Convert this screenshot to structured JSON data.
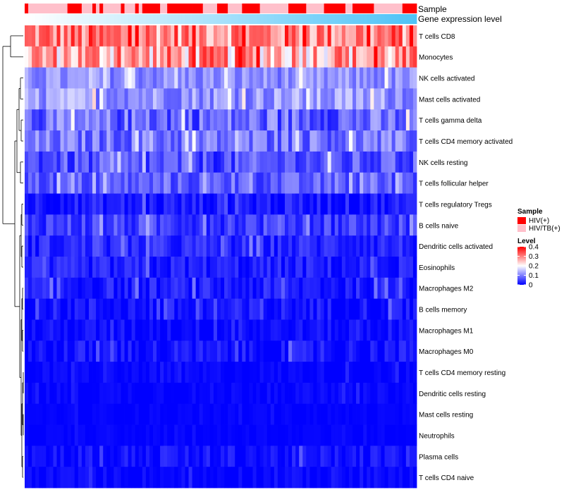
{
  "chart_data": {
    "type": "heatmap",
    "title": "",
    "annotations": {
      "sample_label": "Sample",
      "expression_label": "Gene expression level"
    },
    "legend": {
      "placement": "right",
      "sample": {
        "title": "Sample",
        "entries": [
          {
            "label": "HIV(+)",
            "color": "#ff0000"
          },
          {
            "label": "HIV/TB(+)",
            "color": "#ffc0cb"
          }
        ]
      },
      "level": {
        "title": "Level",
        "ticks": [
          "0.4",
          "0.3",
          "0.2",
          "0.1",
          "0"
        ],
        "tick_values": [
          0.4,
          0.3,
          0.2,
          0.1,
          0.0
        ],
        "range": [
          0,
          0.4
        ]
      }
    },
    "colors": {
      "low": "#0000ff",
      "mid": "#ffffff",
      "high": "#ff0000",
      "hiv": "#ff0000",
      "hivtb": "#ffc0cb",
      "expr_low": "#ffffff",
      "expr_high": "#4fc3f7",
      "dendrogram": "#000000"
    },
    "sample_groups": [
      "HIV(+)",
      "HIV/TB(+)",
      "HIV/TB(+)",
      "HIV/TB(+)",
      "HIV/TB(+)",
      "HIV/TB(+)",
      "HIV/TB(+)",
      "HIV/TB(+)",
      "HIV/TB(+)",
      "HIV/TB(+)",
      "HIV/TB(+)",
      "HIV/TB(+)",
      "HIV(+)",
      "HIV(+)",
      "HIV(+)",
      "HIV(+)",
      "HIV/TB(+)",
      "HIV/TB(+)",
      "HIV/TB(+)",
      "HIV(+)",
      "HIV/TB(+)",
      "HIV(+)",
      "HIV/TB(+)",
      "HIV/TB(+)",
      "HIV/TB(+)",
      "HIV/TB(+)",
      "HIV/TB(+)",
      "HIV(+)",
      "HIV/TB(+)",
      "HIV/TB(+)",
      "HIV/TB(+)",
      "HIV(+)",
      "HIV/TB(+)",
      "HIV(+)",
      "HIV(+)",
      "HIV(+)",
      "HIV(+)",
      "HIV(+)",
      "HIV/TB(+)",
      "HIV/TB(+)",
      "HIV(+)",
      "HIV(+)",
      "HIV(+)",
      "HIV(+)",
      "HIV(+)",
      "HIV(+)",
      "HIV(+)",
      "HIV(+)",
      "HIV(+)",
      "HIV(+)",
      "HIV/TB(+)",
      "HIV/TB(+)",
      "HIV/TB(+)",
      "HIV/TB(+)",
      "HIV(+)",
      "HIV(+)",
      "HIV(+)",
      "HIV/TB(+)",
      "HIV/TB(+)",
      "HIV/TB(+)",
      "HIV/TB(+)",
      "HIV(+)",
      "HIV(+)",
      "HIV(+)",
      "HIV(+)",
      "HIV(+)",
      "HIV/TB(+)",
      "HIV/TB(+)",
      "HIV/TB(+)",
      "HIV/TB(+)",
      "HIV/TB(+)",
      "HIV/TB(+)",
      "HIV/TB(+)",
      "HIV/TB(+)",
      "HIV(+)",
      "HIV(+)",
      "HIV(+)",
      "HIV(+)",
      "HIV(+)",
      "HIV/TB(+)",
      "HIV/TB(+)",
      "HIV/TB(+)",
      "HIV/TB(+)",
      "HIV/TB(+)",
      "HIV(+)",
      "HIV(+)",
      "HIV(+)",
      "HIV(+)",
      "HIV(+)",
      "HIV(+)",
      "HIV/TB(+)",
      "HIV/TB(+)",
      "HIV(+)",
      "HIV(+)",
      "HIV(+)",
      "HIV(+)",
      "HIV(+)",
      "HIV(+)",
      "HIV/TB(+)",
      "HIV/TB(+)",
      "HIV/TB(+)",
      "HIV/TB(+)",
      "HIV/TB(+)",
      "HIV/TB(+)",
      "HIV/TB(+)",
      "HIV/TB(+)",
      "HIV(+)",
      "HIV(+)",
      "HIV(+)",
      "HIV(+)"
    ],
    "rows": [
      {
        "label": "T cells CD8",
        "mean": 0.3,
        "spread": 0.09
      },
      {
        "label": "Monocytes",
        "mean": 0.27,
        "spread": 0.1
      },
      {
        "label": "NK cells activated",
        "mean": 0.11,
        "spread": 0.04
      },
      {
        "label": "Mast cells activated",
        "mean": 0.12,
        "spread": 0.05
      },
      {
        "label": "T cells gamma delta",
        "mean": 0.08,
        "spread": 0.06
      },
      {
        "label": "T cells CD4 memory activated",
        "mean": 0.09,
        "spread": 0.05
      },
      {
        "label": "NK cells resting",
        "mean": 0.06,
        "spread": 0.05
      },
      {
        "label": "T cells follicular helper",
        "mean": 0.07,
        "spread": 0.04
      },
      {
        "label": "T cells regulatory  Tregs",
        "mean": 0.02,
        "spread": 0.03
      },
      {
        "label": "B cells naive",
        "mean": 0.05,
        "spread": 0.04
      },
      {
        "label": "Dendritic cells activated",
        "mean": 0.03,
        "spread": 0.03
      },
      {
        "label": "Eosinophils",
        "mean": 0.02,
        "spread": 0.03
      },
      {
        "label": "Macrophages M2",
        "mean": 0.02,
        "spread": 0.03
      },
      {
        "label": "B cells memory",
        "mean": 0.015,
        "spread": 0.03
      },
      {
        "label": "Macrophages M1",
        "mean": 0.01,
        "spread": 0.02
      },
      {
        "label": "Macrophages M0",
        "mean": 0.012,
        "spread": 0.03
      },
      {
        "label": "T cells CD4 memory resting",
        "mean": 0.004,
        "spread": 0.012
      },
      {
        "label": "Dendritic cells resting",
        "mean": 0.004,
        "spread": 0.012
      },
      {
        "label": "Mast cells resting",
        "mean": 0.002,
        "spread": 0.006
      },
      {
        "label": "Neutrophils",
        "mean": 0.002,
        "spread": 0.006
      },
      {
        "label": "Plasma cells",
        "mean": 0.012,
        "spread": 0.025
      },
      {
        "label": "T cells CD4 naive",
        "mean": 0.005,
        "spread": 0.015
      }
    ],
    "n_samples": 110,
    "value_range": [
      0,
      0.4
    ]
  }
}
